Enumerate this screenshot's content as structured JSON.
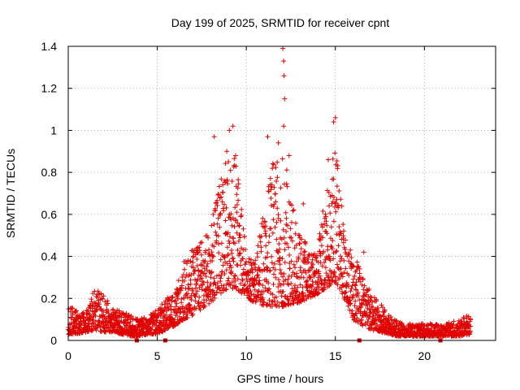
{
  "chart_data": {
    "type": "scatter",
    "title": "Day 199 of 2025, SRMTID for receiver cpnt",
    "xlabel": "GPS time / hours",
    "ylabel": "SRMTID / TECUs",
    "xlim": [
      0,
      24
    ],
    "ylim": [
      0,
      1.4
    ],
    "xticks": [
      0,
      5,
      10,
      15,
      20
    ],
    "yticks": [
      0,
      0.2,
      0.4,
      0.6,
      0.8,
      1,
      1.2,
      1.4
    ],
    "ytick_labels": [
      "0",
      "0.2",
      "0.4",
      "0.6",
      "0.8",
      "1",
      "1.2",
      "1.4"
    ],
    "grid": true,
    "marker": "plus",
    "series_color": "#e00000",
    "axis_markers_x": [
      3.85,
      5.45,
      16.35,
      20.9
    ],
    "envelope": {
      "x": [
        0,
        0.5,
        1,
        1.5,
        2,
        2.5,
        3,
        3.5,
        4,
        4.5,
        5,
        5.5,
        6,
        6.5,
        7,
        7.5,
        8,
        8.5,
        9,
        9.5,
        10,
        10.5,
        11,
        11.5,
        12,
        12.5,
        13,
        13.5,
        14,
        14.5,
        15,
        15.5,
        16,
        16.5,
        17,
        17.5,
        18,
        18.5,
        19,
        19.5,
        20,
        20.5,
        21,
        21.5,
        22,
        22.6
      ],
      "low": [
        0.03,
        0.03,
        0.04,
        0.05,
        0.04,
        0.04,
        0.03,
        0.02,
        0.02,
        0.03,
        0.03,
        0.05,
        0.07,
        0.1,
        0.12,
        0.15,
        0.18,
        0.22,
        0.25,
        0.24,
        0.2,
        0.18,
        0.16,
        0.16,
        0.16,
        0.17,
        0.18,
        0.2,
        0.22,
        0.25,
        0.28,
        0.2,
        0.1,
        0.07,
        0.05,
        0.04,
        0.03,
        0.02,
        0.02,
        0.02,
        0.02,
        0.02,
        0.02,
        0.02,
        0.02,
        0.03
      ],
      "high": [
        0.16,
        0.15,
        0.14,
        0.25,
        0.22,
        0.15,
        0.14,
        0.12,
        0.1,
        0.12,
        0.15,
        0.2,
        0.25,
        0.38,
        0.45,
        0.48,
        0.55,
        0.8,
        0.95,
        0.85,
        0.42,
        0.4,
        0.65,
        0.9,
        0.95,
        0.7,
        0.55,
        0.42,
        0.45,
        0.75,
        0.95,
        0.55,
        0.4,
        0.36,
        0.22,
        0.18,
        0.12,
        0.09,
        0.08,
        0.08,
        0.08,
        0.08,
        0.08,
        0.09,
        0.1,
        0.13
      ]
    },
    "peaks": [
      {
        "x": 8.2,
        "y": 0.97
      },
      {
        "x": 8.9,
        "y": 0.9
      },
      {
        "x": 9.05,
        "y": 1.0
      },
      {
        "x": 9.25,
        "y": 1.02
      },
      {
        "x": 9.4,
        "y": 0.88
      },
      {
        "x": 11.2,
        "y": 0.97
      },
      {
        "x": 11.8,
        "y": 0.94
      },
      {
        "x": 12.05,
        "y": 1.39
      },
      {
        "x": 12.1,
        "y": 1.33
      },
      {
        "x": 12.12,
        "y": 1.26
      },
      {
        "x": 12.15,
        "y": 1.15
      },
      {
        "x": 12.1,
        "y": 1.02
      },
      {
        "x": 12.4,
        "y": 0.88
      },
      {
        "x": 14.9,
        "y": 1.04
      },
      {
        "x": 15.0,
        "y": 1.06
      },
      {
        "x": 14.6,
        "y": 0.86
      },
      {
        "x": 13.2,
        "y": 0.65
      },
      {
        "x": 16.6,
        "y": 0.42
      }
    ],
    "n_points": 2600,
    "seed": 199
  }
}
